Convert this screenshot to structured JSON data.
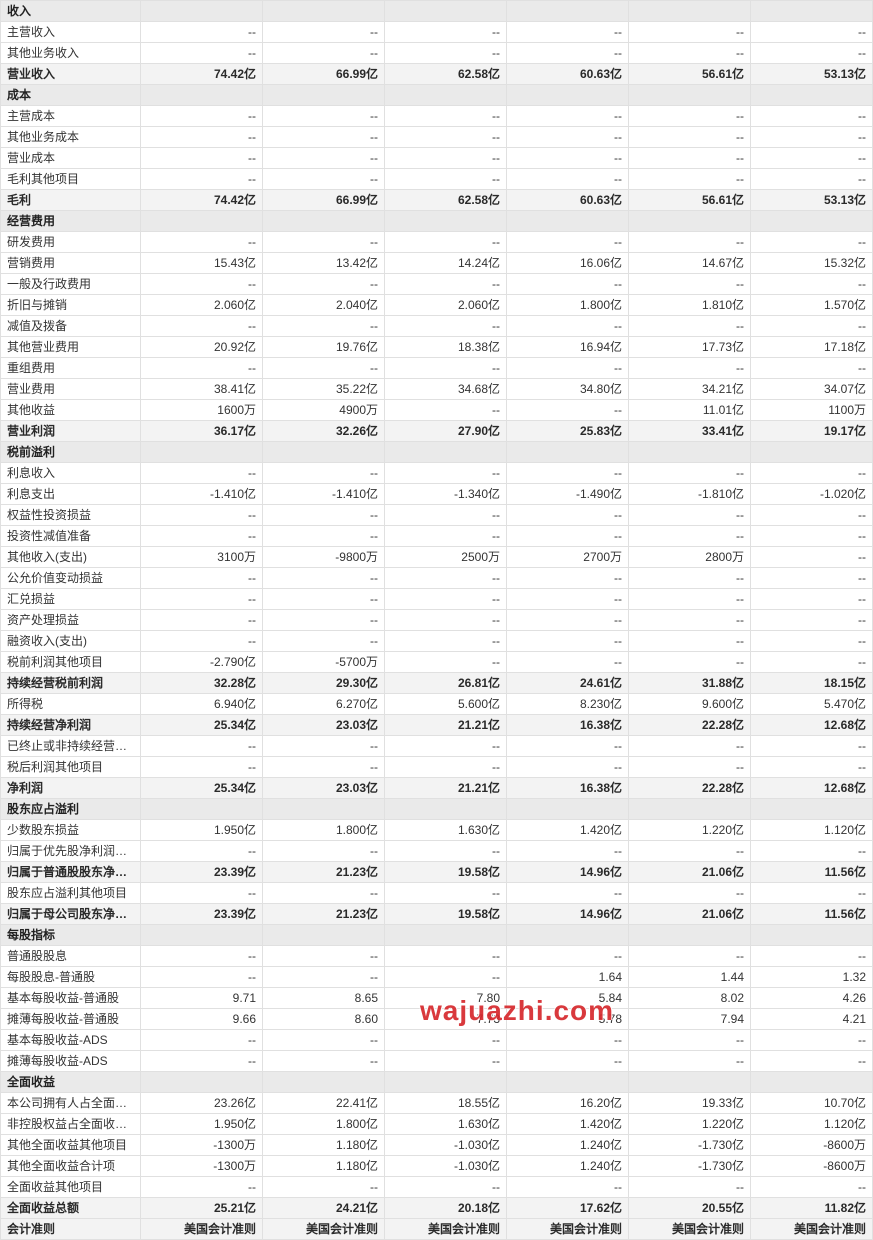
{
  "watermark": "wajuazhi.com",
  "colors": {
    "section_bg": "#eaeaea",
    "highlight_bg": "#f3f3f3",
    "border": "#e0e0e0",
    "text": "#333",
    "watermark": "#d6292d"
  },
  "cols": 6,
  "rows": [
    {
      "type": "section",
      "label": "收入",
      "vals": [
        "",
        "",
        "",
        "",
        "",
        ""
      ]
    },
    {
      "type": "normal",
      "label": "主营收入",
      "vals": [
        "--",
        "--",
        "--",
        "--",
        "--",
        "--"
      ]
    },
    {
      "type": "normal",
      "label": "其他业务收入",
      "vals": [
        "--",
        "--",
        "--",
        "--",
        "--",
        "--"
      ]
    },
    {
      "type": "highlight",
      "label": "营业收入",
      "vals": [
        "74.42亿",
        "66.99亿",
        "62.58亿",
        "60.63亿",
        "56.61亿",
        "53.13亿"
      ]
    },
    {
      "type": "section",
      "label": "成本",
      "vals": [
        "",
        "",
        "",
        "",
        "",
        ""
      ]
    },
    {
      "type": "normal",
      "label": "主营成本",
      "vals": [
        "--",
        "--",
        "--",
        "--",
        "--",
        "--"
      ]
    },
    {
      "type": "normal",
      "label": "其他业务成本",
      "vals": [
        "--",
        "--",
        "--",
        "--",
        "--",
        "--"
      ]
    },
    {
      "type": "normal",
      "label": "营业成本",
      "vals": [
        "--",
        "--",
        "--",
        "--",
        "--",
        "--"
      ]
    },
    {
      "type": "normal",
      "label": "毛利其他项目",
      "vals": [
        "--",
        "--",
        "--",
        "--",
        "--",
        "--"
      ]
    },
    {
      "type": "highlight",
      "label": "毛利",
      "vals": [
        "74.42亿",
        "66.99亿",
        "62.58亿",
        "60.63亿",
        "56.61亿",
        "53.13亿"
      ]
    },
    {
      "type": "section",
      "label": "经营费用",
      "vals": [
        "",
        "",
        "",
        "",
        "",
        ""
      ]
    },
    {
      "type": "normal",
      "label": "研发费用",
      "vals": [
        "--",
        "--",
        "--",
        "--",
        "--",
        "--"
      ]
    },
    {
      "type": "normal",
      "label": "营销费用",
      "vals": [
        "15.43亿",
        "13.42亿",
        "14.24亿",
        "16.06亿",
        "14.67亿",
        "15.32亿"
      ]
    },
    {
      "type": "normal",
      "label": "一般及行政费用",
      "vals": [
        "--",
        "--",
        "--",
        "--",
        "--",
        "--"
      ]
    },
    {
      "type": "normal",
      "label": "折旧与摊销",
      "vals": [
        "2.060亿",
        "2.040亿",
        "2.060亿",
        "1.800亿",
        "1.810亿",
        "1.570亿"
      ]
    },
    {
      "type": "normal",
      "label": "减值及拨备",
      "vals": [
        "--",
        "--",
        "--",
        "--",
        "--",
        "--"
      ]
    },
    {
      "type": "normal",
      "label": "其他营业费用",
      "vals": [
        "20.92亿",
        "19.76亿",
        "18.38亿",
        "16.94亿",
        "17.73亿",
        "17.18亿"
      ]
    },
    {
      "type": "normal",
      "label": "重组费用",
      "vals": [
        "--",
        "--",
        "--",
        "--",
        "--",
        "--"
      ]
    },
    {
      "type": "normal",
      "label": "营业费用",
      "vals": [
        "38.41亿",
        "35.22亿",
        "34.68亿",
        "34.80亿",
        "34.21亿",
        "34.07亿"
      ]
    },
    {
      "type": "normal",
      "label": "其他收益",
      "vals": [
        "1600万",
        "4900万",
        "--",
        "--",
        "11.01亿",
        "1100万"
      ]
    },
    {
      "type": "highlight",
      "label": "营业利润",
      "vals": [
        "36.17亿",
        "32.26亿",
        "27.90亿",
        "25.83亿",
        "33.41亿",
        "19.17亿"
      ]
    },
    {
      "type": "section",
      "label": "税前溢利",
      "vals": [
        "",
        "",
        "",
        "",
        "",
        ""
      ]
    },
    {
      "type": "normal",
      "label": "利息收入",
      "vals": [
        "--",
        "--",
        "--",
        "--",
        "--",
        "--"
      ]
    },
    {
      "type": "normal",
      "label": "利息支出",
      "vals": [
        "-1.410亿",
        "-1.410亿",
        "-1.340亿",
        "-1.490亿",
        "-1.810亿",
        "-1.020亿"
      ]
    },
    {
      "type": "normal",
      "label": "权益性投资损益",
      "vals": [
        "--",
        "--",
        "--",
        "--",
        "--",
        "--"
      ]
    },
    {
      "type": "normal",
      "label": "投资性减值准备",
      "vals": [
        "--",
        "--",
        "--",
        "--",
        "--",
        "--"
      ]
    },
    {
      "type": "normal",
      "label": "其他收入(支出)",
      "vals": [
        "3100万",
        "-9800万",
        "2500万",
        "2700万",
        "2800万",
        "--"
      ]
    },
    {
      "type": "normal",
      "label": "公允价值变动损益",
      "vals": [
        "--",
        "--",
        "--",
        "--",
        "--",
        "--"
      ]
    },
    {
      "type": "normal",
      "label": "汇兑损益",
      "vals": [
        "--",
        "--",
        "--",
        "--",
        "--",
        "--"
      ]
    },
    {
      "type": "normal",
      "label": "资产处理损益",
      "vals": [
        "--",
        "--",
        "--",
        "--",
        "--",
        "--"
      ]
    },
    {
      "type": "normal",
      "label": "融资收入(支出)",
      "vals": [
        "--",
        "--",
        "--",
        "--",
        "--",
        "--"
      ]
    },
    {
      "type": "normal",
      "label": "税前利润其他项目",
      "vals": [
        "-2.790亿",
        "-5700万",
        "--",
        "--",
        "--",
        "--"
      ]
    },
    {
      "type": "highlight",
      "label": "持续经营税前利润",
      "vals": [
        "32.28亿",
        "29.30亿",
        "26.81亿",
        "24.61亿",
        "31.88亿",
        "18.15亿"
      ]
    },
    {
      "type": "normal",
      "label": "所得税",
      "vals": [
        "6.940亿",
        "6.270亿",
        "5.600亿",
        "8.230亿",
        "9.600亿",
        "5.470亿"
      ]
    },
    {
      "type": "highlight",
      "label": "持续经营净利润",
      "vals": [
        "25.34亿",
        "23.03亿",
        "21.21亿",
        "16.38亿",
        "22.28亿",
        "12.68亿"
      ]
    },
    {
      "type": "normal",
      "label": "已终止或非持续经营净利润",
      "vals": [
        "--",
        "--",
        "--",
        "--",
        "--",
        "--"
      ]
    },
    {
      "type": "normal",
      "label": "税后利润其他项目",
      "vals": [
        "--",
        "--",
        "--",
        "--",
        "--",
        "--"
      ]
    },
    {
      "type": "highlight",
      "label": "净利润",
      "vals": [
        "25.34亿",
        "23.03亿",
        "21.21亿",
        "16.38亿",
        "22.28亿",
        "12.68亿"
      ]
    },
    {
      "type": "section",
      "label": "股东应占溢利",
      "vals": [
        "",
        "",
        "",
        "",
        "",
        ""
      ]
    },
    {
      "type": "normal",
      "label": "少数股东损益",
      "vals": [
        "1.950亿",
        "1.800亿",
        "1.630亿",
        "1.420亿",
        "1.220亿",
        "1.120亿"
      ]
    },
    {
      "type": "normal",
      "label": "归属于优先股净利润及其他项",
      "vals": [
        "--",
        "--",
        "--",
        "--",
        "--",
        "--"
      ]
    },
    {
      "type": "highlight",
      "label": "归属于普通股股东净利润",
      "vals": [
        "23.39亿",
        "21.23亿",
        "19.58亿",
        "14.96亿",
        "21.06亿",
        "11.56亿"
      ]
    },
    {
      "type": "normal",
      "label": "股东应占溢利其他项目",
      "vals": [
        "--",
        "--",
        "--",
        "--",
        "--",
        "--"
      ]
    },
    {
      "type": "highlight",
      "label": "归属于母公司股东净利润",
      "vals": [
        "23.39亿",
        "21.23亿",
        "19.58亿",
        "14.96亿",
        "21.06亿",
        "11.56亿"
      ]
    },
    {
      "type": "section",
      "label": "每股指标",
      "vals": [
        "",
        "",
        "",
        "",
        "",
        ""
      ]
    },
    {
      "type": "normal",
      "label": "普通股股息",
      "vals": [
        "--",
        "--",
        "--",
        "--",
        "--",
        "--"
      ]
    },
    {
      "type": "normal",
      "label": "每股股息-普通股",
      "vals": [
        "--",
        "--",
        "--",
        "1.64",
        "1.44",
        "1.32"
      ]
    },
    {
      "type": "normal",
      "label": "基本每股收益-普通股",
      "vals": [
        "9.71",
        "8.65",
        "7.80",
        "5.84",
        "8.02",
        "4.26"
      ]
    },
    {
      "type": "normal",
      "label": "摊薄每股收益-普通股",
      "vals": [
        "9.66",
        "8.60",
        "7.73",
        "5.78",
        "7.94",
        "4.21"
      ]
    },
    {
      "type": "normal",
      "label": "基本每股收益-ADS",
      "vals": [
        "--",
        "--",
        "--",
        "--",
        "--",
        "--"
      ]
    },
    {
      "type": "normal",
      "label": "摊薄每股收益-ADS",
      "vals": [
        "--",
        "--",
        "--",
        "--",
        "--",
        "--"
      ]
    },
    {
      "type": "section",
      "label": "全面收益",
      "vals": [
        "",
        "",
        "",
        "",
        "",
        ""
      ]
    },
    {
      "type": "normal",
      "label": "本公司拥有人占全面收益总额",
      "vals": [
        "23.26亿",
        "22.41亿",
        "18.55亿",
        "16.20亿",
        "19.33亿",
        "10.70亿"
      ]
    },
    {
      "type": "normal",
      "label": "非控股权益占全面收益总额",
      "vals": [
        "1.950亿",
        "1.800亿",
        "1.630亿",
        "1.420亿",
        "1.220亿",
        "1.120亿"
      ]
    },
    {
      "type": "normal",
      "label": "其他全面收益其他项目",
      "vals": [
        "-1300万",
        "1.180亿",
        "-1.030亿",
        "1.240亿",
        "-1.730亿",
        "-8600万"
      ]
    },
    {
      "type": "normal",
      "label": "其他全面收益合计项",
      "vals": [
        "-1300万",
        "1.180亿",
        "-1.030亿",
        "1.240亿",
        "-1.730亿",
        "-8600万"
      ]
    },
    {
      "type": "normal",
      "label": "全面收益其他项目",
      "vals": [
        "--",
        "--",
        "--",
        "--",
        "--",
        "--"
      ]
    },
    {
      "type": "highlight",
      "label": "全面收益总额",
      "vals": [
        "25.21亿",
        "24.21亿",
        "20.18亿",
        "17.62亿",
        "20.55亿",
        "11.82亿"
      ]
    },
    {
      "type": "highlight",
      "label": "会计准则",
      "vals": [
        "美国会计准则",
        "美国会计准则",
        "美国会计准则",
        "美国会计准则",
        "美国会计准则",
        "美国会计准则"
      ]
    }
  ]
}
